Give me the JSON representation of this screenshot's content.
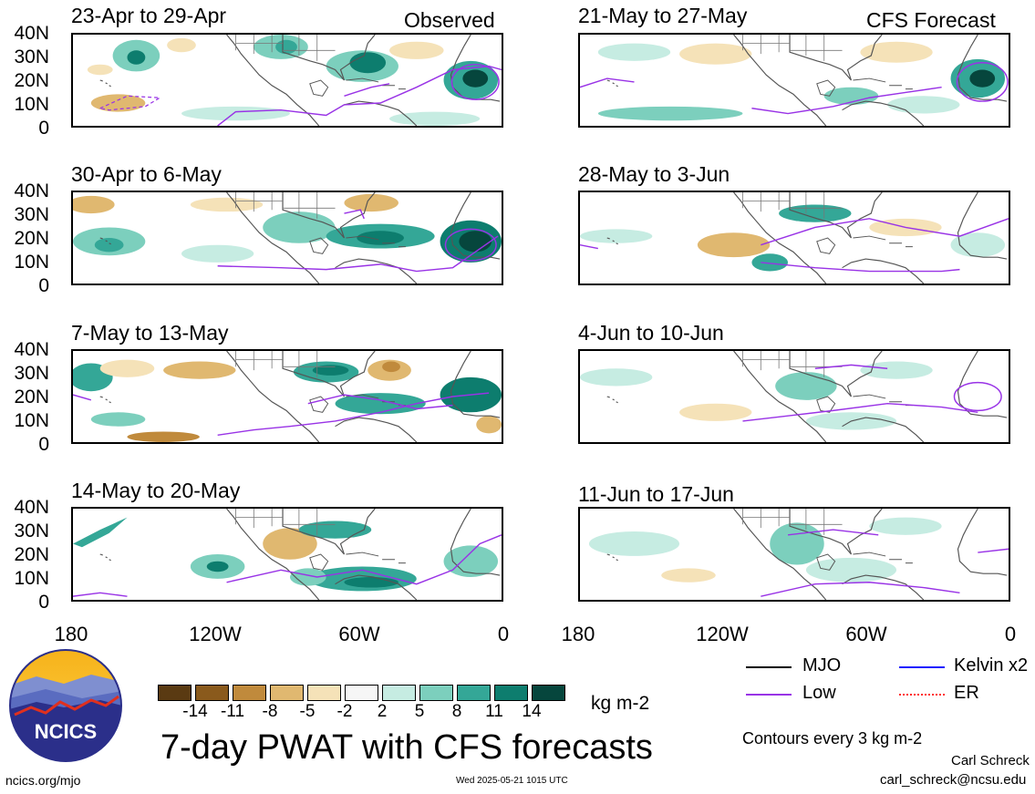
{
  "header": {
    "left_label": "Observed",
    "right_label": "CFS Forecast"
  },
  "panels_left": [
    {
      "title": "23-Apr to 29-Apr"
    },
    {
      "title": "30-Apr to 6-May"
    },
    {
      "title": "7-May to 13-May"
    },
    {
      "title": "14-May to 20-May"
    }
  ],
  "panels_right": [
    {
      "title": "21-May to 27-May"
    },
    {
      "title": "28-May to 3-Jun"
    },
    {
      "title": "4-Jun to 10-Jun"
    },
    {
      "title": "11-Jun to 17-Jun"
    }
  ],
  "lat_labels": [
    "40N",
    "30N",
    "20N",
    "10N",
    "0"
  ],
  "lon_labels": [
    "180",
    "120W",
    "60W",
    "0"
  ],
  "legend": {
    "mjo": "MJO",
    "kelvin": "Kelvin x2",
    "low": "Low",
    "er": "ER",
    "colors": {
      "mjo": "#000000",
      "kelvin": "#1a1aff",
      "low": "#9933e6",
      "er": "#ff2a2a"
    }
  },
  "colorbar": {
    "labels": [
      "-14",
      "-11",
      "-8",
      "-5",
      "-2",
      "2",
      "5",
      "8",
      "11",
      "14"
    ],
    "colors": [
      "#5a3a12",
      "#8a5a1c",
      "#c08a3c",
      "#e0b870",
      "#f5e2b8",
      "#f6f6f6",
      "#c6ece2",
      "#7ccfbd",
      "#34a797",
      "#0d7d6e",
      "#06463d"
    ],
    "units": "kg m-2"
  },
  "main_title": "7-day PWAT with CFS forecasts",
  "contours_note": "Contours every 3 kg m-2",
  "author": "Carl Schreck",
  "email": "carl_schreck@ncsu.edu",
  "website": "ncics.org/mjo",
  "timestamp": "Wed 2025-05-21 1015 UTC",
  "logo_text": "NCICS"
}
